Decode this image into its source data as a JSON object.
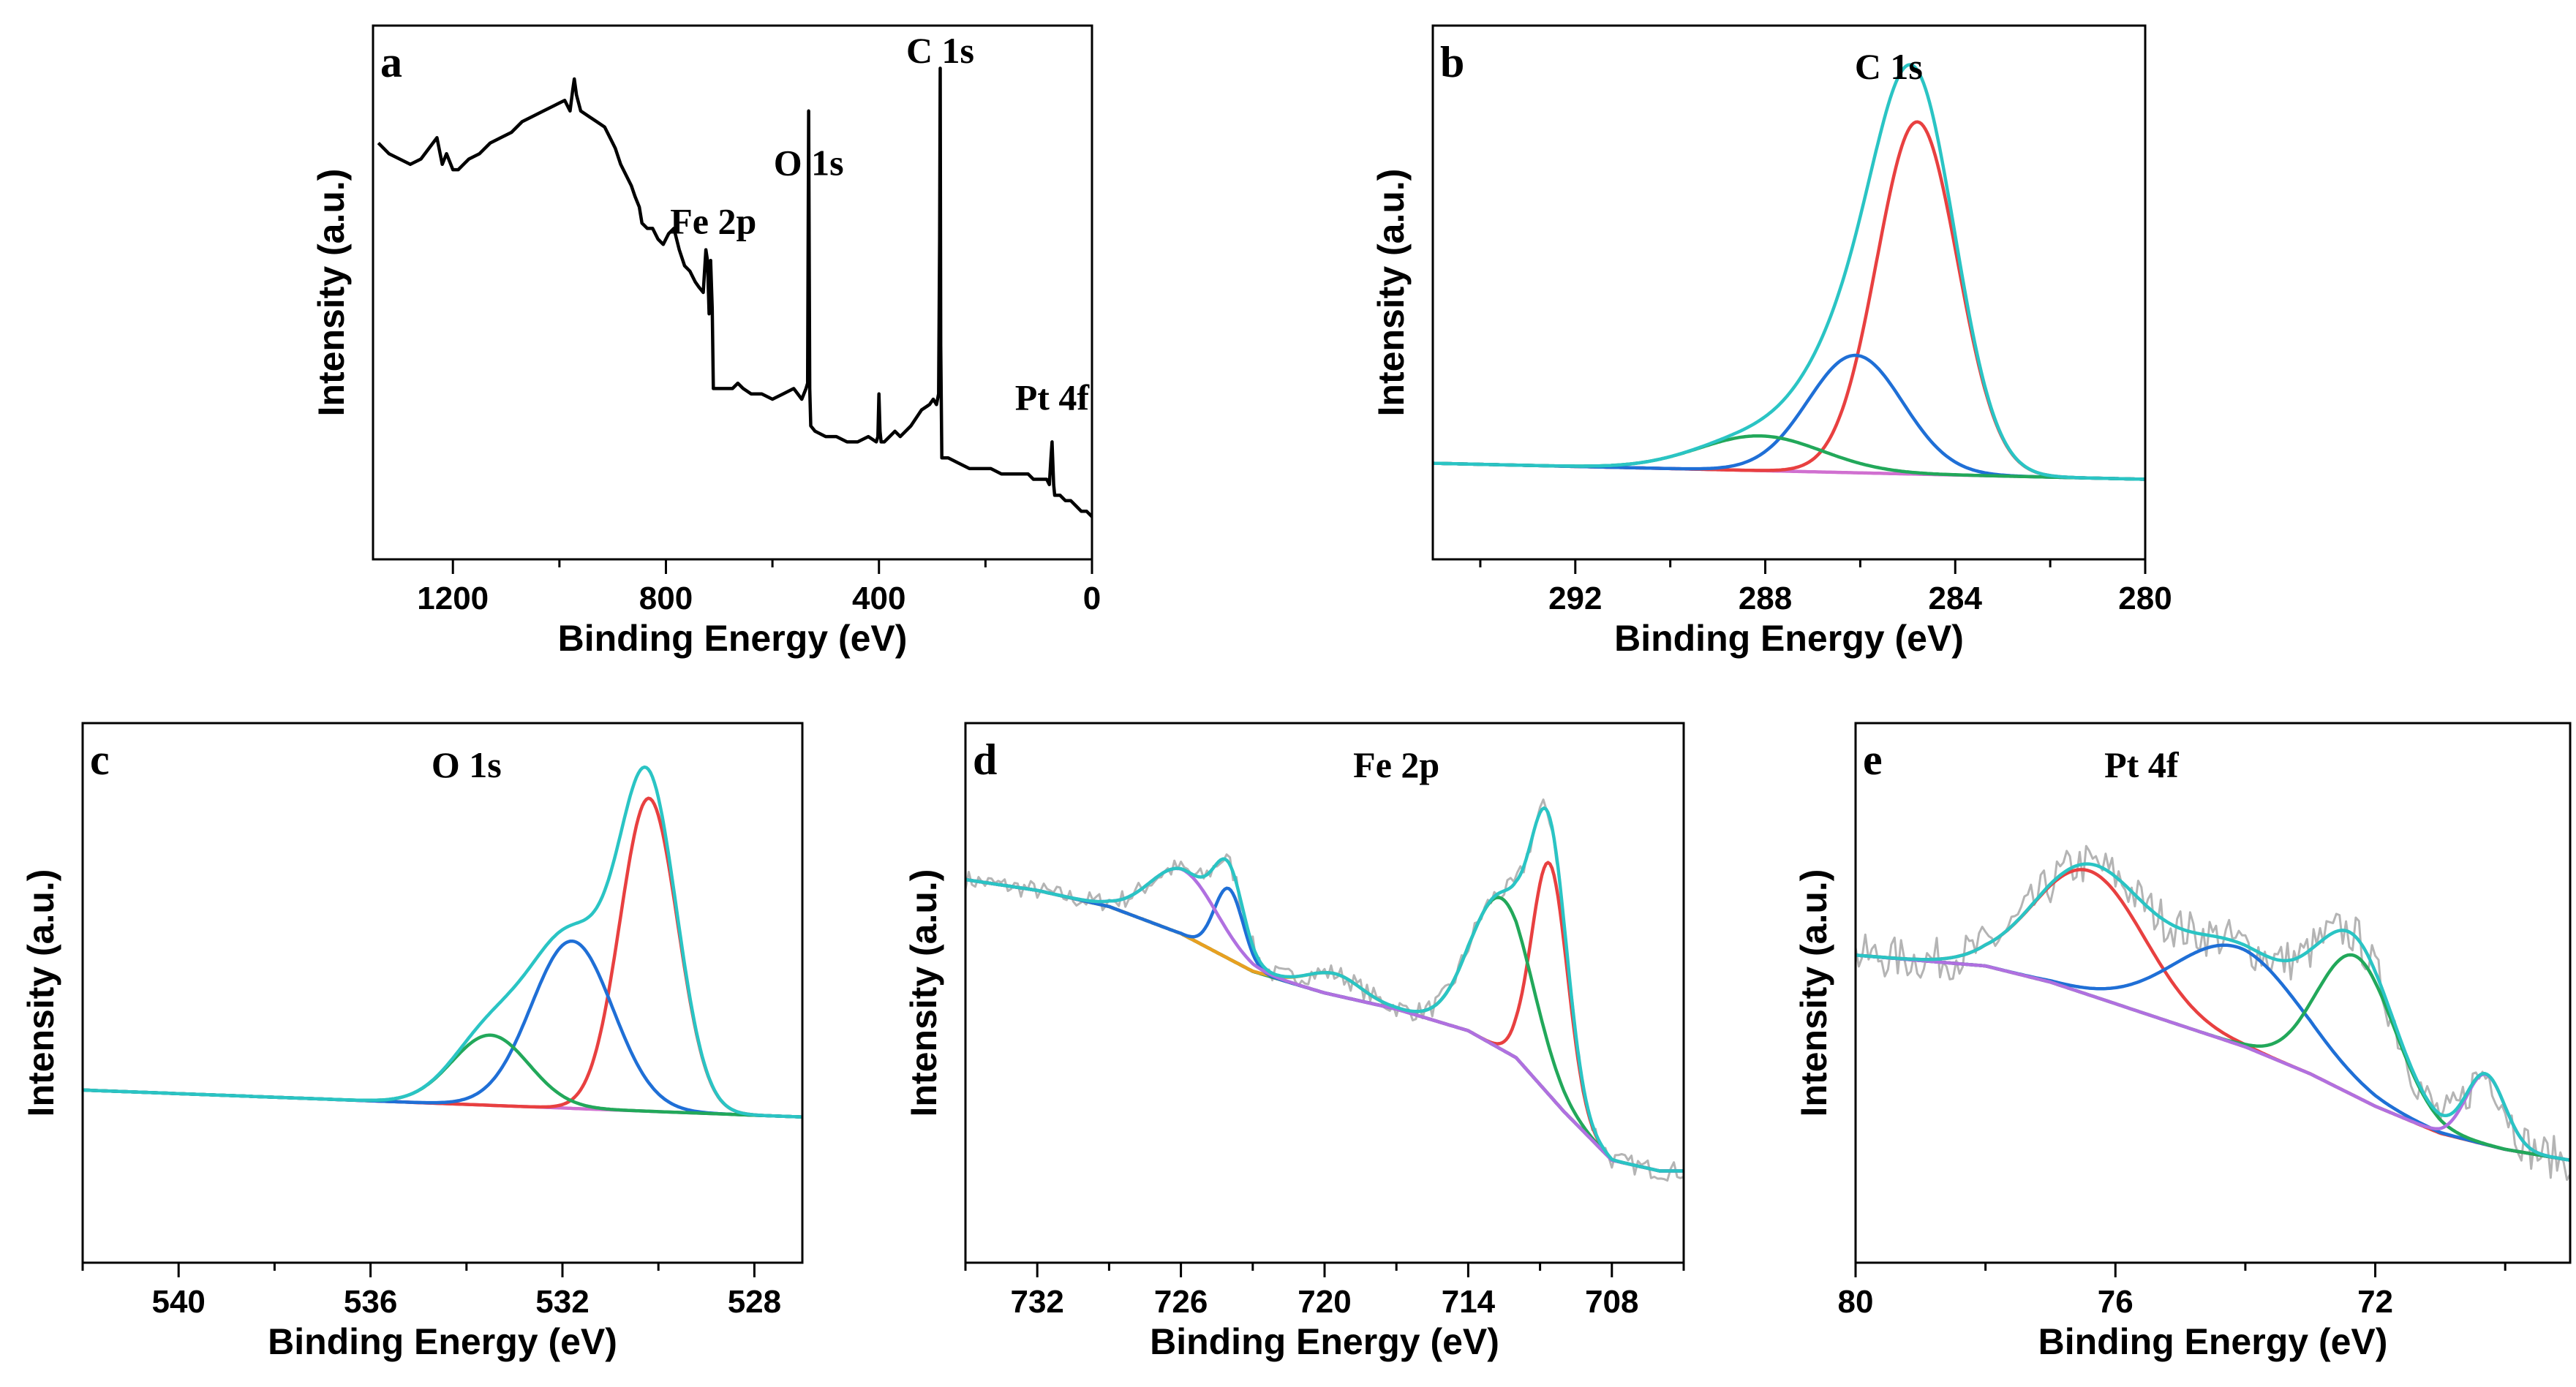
{
  "chart_data": [
    {
      "panel": "a",
      "type": "line",
      "title": "",
      "xlabel": "Binding Energy (eV)",
      "ylabel": "Intensity (a.u.)",
      "xlim": [
        1350,
        0
      ],
      "xticks": [
        1200,
        800,
        400,
        0
      ],
      "xtick_labels": [
        "1200",
        "800",
        "400",
        "0"
      ],
      "ylim": [
        0,
        100
      ],
      "annotations": [
        {
          "text": "C 1s",
          "x": 285,
          "y": 93
        },
        {
          "text": "O 1s",
          "x": 532,
          "y": 72
        },
        {
          "text": "Fe 2p",
          "x": 711,
          "y": 61
        },
        {
          "text": "Pt 4f",
          "x": 75,
          "y": 28
        }
      ],
      "series": [
        {
          "name": "survey",
          "color": "#000000",
          "x": [
            1340,
            1320,
            1300,
            1280,
            1260,
            1245,
            1230,
            1220,
            1212,
            1200,
            1190,
            1170,
            1150,
            1130,
            1110,
            1090,
            1070,
            1050,
            1030,
            1010,
            990,
            980,
            975,
            972,
            968,
            960,
            945,
            930,
            915,
            905,
            895,
            885,
            875,
            865,
            858,
            850,
            845,
            835,
            825,
            815,
            805,
            795,
            785,
            775,
            765,
            755,
            745,
            738,
            730,
            725,
            722,
            719,
            716,
            713,
            711,
            709,
            705,
            695,
            685,
            675,
            665,
            655,
            640,
            620,
            600,
            580,
            560,
            545,
            537,
            534,
            532,
            530,
            528,
            520,
            500,
            480,
            460,
            440,
            420,
            405,
            402,
            400,
            398,
            396,
            390,
            380,
            370,
            360,
            340,
            320,
            305,
            298,
            292,
            288,
            286,
            285,
            284,
            282,
            280,
            270,
            250,
            230,
            210,
            190,
            170,
            150,
            130,
            120,
            110,
            100,
            90,
            85,
            80,
            77,
            75,
            72,
            70,
            60,
            50,
            40,
            30,
            20,
            10,
            0
          ],
          "y": [
            78,
            76,
            75,
            74,
            75,
            77,
            79,
            74,
            76,
            73,
            73,
            75,
            76,
            78,
            79,
            80,
            82,
            83,
            84,
            85,
            86,
            84,
            88,
            90,
            87,
            84,
            83,
            82,
            81,
            79,
            77,
            74,
            72,
            70,
            68,
            66,
            63,
            62,
            62,
            60,
            59,
            61,
            62,
            58,
            55,
            54,
            52,
            51,
            50,
            58,
            56,
            46,
            56,
            47,
            32,
            32,
            32,
            32,
            32,
            32,
            33,
            32,
            31,
            31,
            30,
            31,
            32,
            30,
            32,
            33,
            84,
            32,
            25,
            24,
            23,
            23,
            22,
            22,
            23,
            22,
            23,
            31,
            24,
            22,
            22,
            23,
            24,
            23,
            25,
            28,
            29,
            30,
            29,
            31,
            60,
            92,
            40,
            19,
            19,
            19,
            18,
            17,
            17,
            17,
            16,
            16,
            16,
            16,
            15,
            15,
            15,
            15,
            14,
            19,
            22,
            14,
            12,
            12,
            11,
            11,
            10,
            9,
            9,
            8
          ]
        }
      ]
    },
    {
      "panel": "b",
      "type": "line",
      "title": "",
      "xlabel": "Binding Energy (eV)",
      "ylabel": "Intensity (a.u.)",
      "xlim": [
        295,
        280
      ],
      "xticks": [
        292,
        288,
        284,
        280
      ],
      "xtick_labels": [
        "292",
        "288",
        "284",
        "280"
      ],
      "ylim": [
        0,
        100
      ],
      "annotations": [
        {
          "text": "C 1s",
          "x": 285.4,
          "y": 90
        }
      ],
      "series": [
        {
          "name": "background",
          "color": "#d070d0",
          "kind": "background",
          "x": [
            295,
            280
          ],
          "y": [
            18,
            15
          ]
        },
        {
          "name": "peak-1",
          "color": "#e84040",
          "kind": "peak",
          "center": 284.8,
          "height": 66,
          "width": 0.85
        },
        {
          "name": "peak-2",
          "color": "#1f6fd6",
          "kind": "peak",
          "center": 286.1,
          "height": 22,
          "width": 1.0
        },
        {
          "name": "peak-3",
          "color": "#22a85a",
          "kind": "peak",
          "center": 288.1,
          "height": 6.5,
          "width": 1.3
        },
        {
          "name": "envelope",
          "color": "#2ac4c4",
          "kind": "envelope"
        }
      ]
    },
    {
      "panel": "c",
      "type": "line",
      "title": "",
      "xlabel": "Binding Energy (eV)",
      "ylabel": "Intensity (a.u.)",
      "xlim": [
        542,
        527
      ],
      "xticks": [
        540,
        536,
        532,
        528
      ],
      "xtick_labels": [
        "540",
        "536",
        "532",
        "528"
      ],
      "ylim": [
        0,
        100
      ],
      "annotations": [
        {
          "text": "O 1s",
          "x": 534.0,
          "y": 90
        }
      ],
      "series": [
        {
          "name": "background",
          "color": "#d070d0",
          "kind": "background",
          "x": [
            542,
            527
          ],
          "y": [
            32,
            27
          ]
        },
        {
          "name": "peak-1",
          "color": "#e84040",
          "kind": "peak",
          "center": 530.2,
          "height": 58,
          "width": 0.6
        },
        {
          "name": "peak-2",
          "color": "#1f6fd6",
          "kind": "peak",
          "center": 531.8,
          "height": 31,
          "width": 0.85
        },
        {
          "name": "peak-3",
          "color": "#22a85a",
          "kind": "peak",
          "center": 533.5,
          "height": 13,
          "width": 0.8
        },
        {
          "name": "envelope",
          "color": "#2ac4c4",
          "kind": "envelope"
        }
      ]
    },
    {
      "panel": "d",
      "type": "line",
      "title": "",
      "xlabel": "Binding Energy (eV)",
      "ylabel": "Intensity (a.u.)",
      "xlim": [
        735,
        705
      ],
      "xticks": [
        732,
        726,
        720,
        714,
        708
      ],
      "xtick_labels": [
        "732",
        "726",
        "720",
        "714",
        "708"
      ],
      "ylim": [
        0,
        100
      ],
      "annotations": [
        {
          "text": "Fe 2p",
          "x": 717.0,
          "y": 90
        }
      ],
      "series": [
        {
          "name": "background",
          "color": "#8fa43a",
          "kind": "background",
          "x": [
            735,
            732,
            729,
            726,
            723,
            720,
            717,
            714,
            712,
            710,
            708,
            706,
            705
          ],
          "y": [
            71,
            69,
            66,
            61,
            54,
            50,
            47,
            43,
            38,
            28,
            19,
            17,
            17
          ]
        },
        {
          "name": "peak-1",
          "color": "#e84040",
          "kind": "peak",
          "center": 710.6,
          "height": 43,
          "width": 0.75
        },
        {
          "name": "peak-2",
          "color": "#22a85a",
          "kind": "peak",
          "center": 712.6,
          "height": 28,
          "width": 1.3
        },
        {
          "name": "peak-3",
          "color": "#e8a020",
          "kind": "peak",
          "center": 719.6,
          "height": 4,
          "width": 1.1
        },
        {
          "name": "peak-4",
          "color": "#1f6fd6",
          "kind": "peak",
          "center": 724.0,
          "height": 13,
          "width": 0.6
        },
        {
          "name": "peak-5",
          "color": "#b070e0",
          "kind": "peak",
          "center": 725.9,
          "height": 12,
          "width": 1.4
        },
        {
          "name": "raw",
          "color": "#b4b4b4",
          "kind": "raw",
          "noise": 1.8
        },
        {
          "name": "envelope",
          "color": "#2ac4c4",
          "kind": "envelope"
        }
      ]
    },
    {
      "panel": "e",
      "type": "line",
      "title": "",
      "xlabel": "Binding Energy (eV)",
      "ylabel": "Intensity (a.u.)",
      "xlim": [
        80,
        69
      ],
      "xticks": [
        80,
        76,
        72
      ],
      "xtick_labels": [
        "80",
        "76",
        "72"
      ],
      "ylim": [
        0,
        100
      ],
      "annotations": [
        {
          "text": "Pt 4f",
          "x": 75.6,
          "y": 90
        }
      ],
      "series": [
        {
          "name": "background",
          "color": "#c87060",
          "kind": "background",
          "x": [
            80,
            78,
            77,
            76,
            75,
            74,
            73,
            72,
            71,
            70,
            69
          ],
          "y": [
            57,
            55,
            52,
            48,
            44,
            40,
            35,
            29,
            24,
            21,
            19
          ]
        },
        {
          "name": "peak-1",
          "color": "#e84040",
          "kind": "peak",
          "center": 76.4,
          "height": 23,
          "width": 0.85
        },
        {
          "name": "peak-2",
          "color": "#1f6fd6",
          "kind": "peak",
          "center": 74.1,
          "height": 18,
          "width": 1.0
        },
        {
          "name": "peak-3",
          "color": "#22a85a",
          "kind": "peak",
          "center": 72.3,
          "height": 26,
          "width": 0.6
        },
        {
          "name": "peak-4",
          "color": "#b070e0",
          "kind": "peak",
          "center": 70.3,
          "height": 13,
          "width": 0.3
        },
        {
          "name": "raw",
          "color": "#b4b4b4",
          "kind": "raw",
          "noise": 4
        },
        {
          "name": "envelope",
          "color": "#2ac4c4",
          "kind": "envelope"
        }
      ]
    }
  ]
}
